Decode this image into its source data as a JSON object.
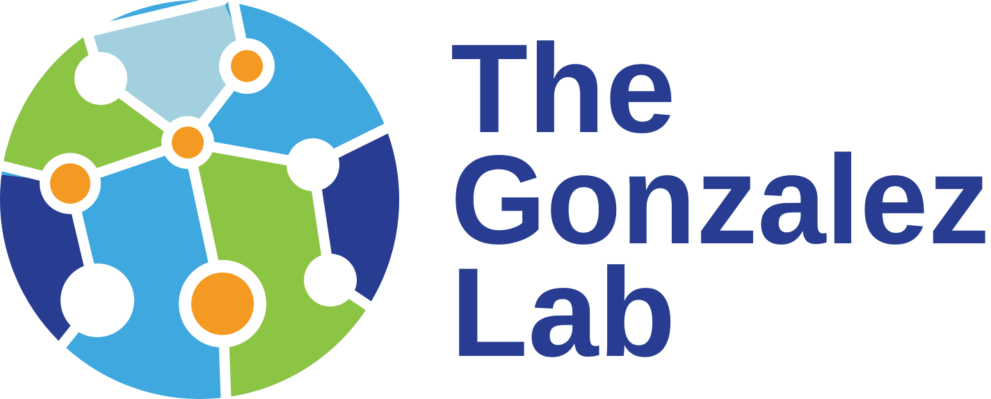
{
  "logo": {
    "lines": [
      "The",
      "Gonzalez",
      "Lab"
    ]
  }
}
